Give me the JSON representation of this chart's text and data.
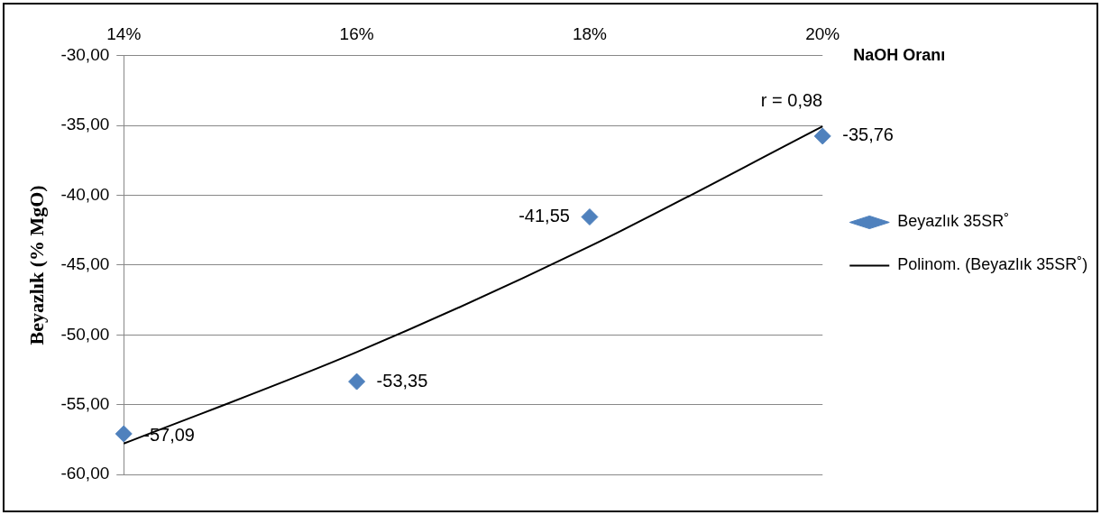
{
  "chart_data": {
    "type": "scatter",
    "xlabel": "NaOH Oranı",
    "ylabel": "Beyazlık (% MgO)",
    "categories": [
      "14%",
      "16%",
      "18%",
      "20%"
    ],
    "series": [
      {
        "name": "Beyazlık 35SR˚",
        "color": "#4f81bd",
        "marker": "diamond",
        "values": [
          -57.09,
          -53.35,
          -41.55,
          -35.76
        ],
        "value_labels": [
          "-57,09",
          "-53,35",
          "-41,55",
          "-35,76"
        ]
      },
      {
        "name": "Polinom. (Beyazlık 35SR˚)",
        "type": "line",
        "color": "#000000",
        "marker": "none",
        "line_style": "solid",
        "values": [
          -57.79,
          -51.24,
          -43.66,
          -35.06
        ]
      }
    ],
    "ylim": [
      -60,
      -30
    ],
    "yticks": [
      {
        "value": -60,
        "label": "-60,00"
      },
      {
        "value": -55,
        "label": "-55,00"
      },
      {
        "value": -50,
        "label": "-50,00"
      },
      {
        "value": -45,
        "label": "-45,00"
      },
      {
        "value": -40,
        "label": "-40,00"
      },
      {
        "value": -35,
        "label": "-35,00"
      },
      {
        "value": -30,
        "label": "-30,00"
      }
    ],
    "annotations": [
      "r = 0,98"
    ],
    "grid": "y",
    "legend": "right"
  }
}
